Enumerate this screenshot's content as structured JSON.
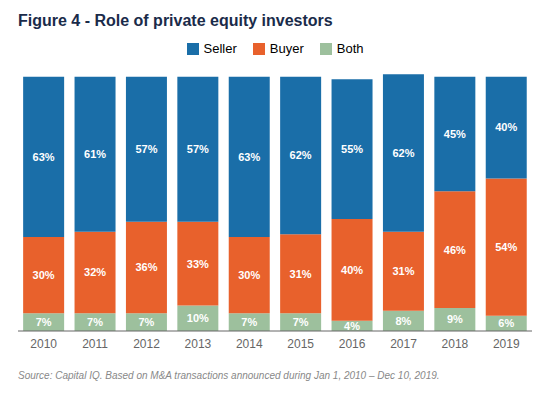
{
  "chart_data": {
    "type": "bar",
    "title": "Figure 4 - Role of private equity investors",
    "annotations": [
      "Source: Capital IQ. Based on M&A transactions announced during Jan 1, 2010 – Dec 10, 2019."
    ],
    "categories": [
      "2010",
      "2011",
      "2012",
      "2013",
      "2014",
      "2015",
      "2016",
      "2017",
      "2018",
      "2019"
    ],
    "series": [
      {
        "name": "Both",
        "color": "#9dc09d",
        "values": [
          7,
          7,
          7,
          10,
          7,
          7,
          4,
          8,
          9,
          6
        ],
        "value_labels": [
          "7%",
          "7%",
          "7%",
          "10%",
          "7%",
          "7%",
          "4%",
          "8%",
          "9%",
          "6%"
        ]
      },
      {
        "name": "Buyer",
        "color": "#e8612c",
        "values": [
          30,
          32,
          36,
          33,
          30,
          31,
          40,
          31,
          46,
          54
        ],
        "value_labels": [
          "30%",
          "32%",
          "36%",
          "33%",
          "30%",
          "31%",
          "40%",
          "31%",
          "46%",
          "54%"
        ]
      },
      {
        "name": "Seller",
        "color": "#1a6ea8",
        "values": [
          63,
          61,
          57,
          57,
          63,
          62,
          55,
          62,
          45,
          40
        ],
        "value_labels": [
          "63%",
          "61%",
          "57%",
          "57%",
          "63%",
          "62%",
          "55%",
          "62%",
          "45%",
          "40%"
        ]
      }
    ],
    "ylim": [
      0,
      105
    ],
    "stacked": true,
    "data_labels": true,
    "tick_labels": "x",
    "grid": false,
    "legend": "top"
  }
}
